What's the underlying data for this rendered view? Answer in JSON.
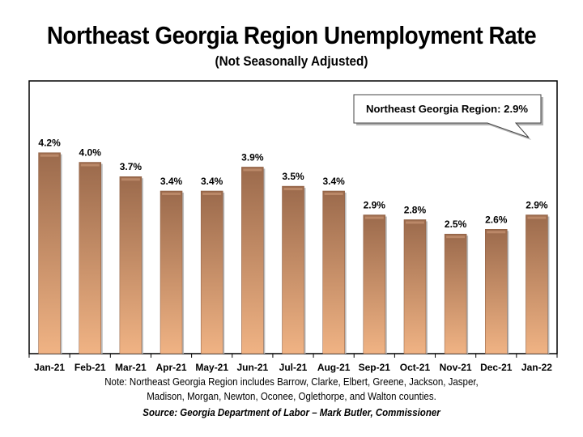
{
  "chart_data": {
    "type": "bar",
    "title": "Northeast Georgia Region Unemployment Rate",
    "subtitle": "(Not Seasonally Adjusted)",
    "categories": [
      "Jan-21",
      "Feb-21",
      "Mar-21",
      "Apr-21",
      "May-21",
      "Jun-21",
      "Jul-21",
      "Aug-21",
      "Sep-21",
      "Oct-21",
      "Nov-21",
      "Dec-21",
      "Jan-22"
    ],
    "values": [
      4.2,
      4.0,
      3.7,
      3.4,
      3.4,
      3.9,
      3.5,
      3.4,
      2.9,
      2.8,
      2.5,
      2.6,
      2.9
    ],
    "data_labels": [
      "4.2%",
      "4.0%",
      "3.7%",
      "3.4%",
      "3.4%",
      "3.9%",
      "3.5%",
      "3.4%",
      "2.9%",
      "2.8%",
      "2.5%",
      "2.6%",
      "2.9%"
    ],
    "ylim": [
      0,
      5.7
    ],
    "xlabel": "",
    "ylabel": "",
    "grid": false,
    "annotation": "Northeast Georgia Region: 2.9%",
    "colors": {
      "bar_top": "#9b6a4c",
      "bar_bottom": "#f0b384"
    }
  },
  "note_line1": "Note: Northeast Georgia Region includes Barrow, Clarke, Elbert, Greene, Jackson, Jasper,",
  "note_line2": "Madison, Morgan, Newton, Oconee, Oglethorpe, and Walton counties.",
  "source": "Source:  Georgia Department of Labor – Mark Butler, Commissioner"
}
